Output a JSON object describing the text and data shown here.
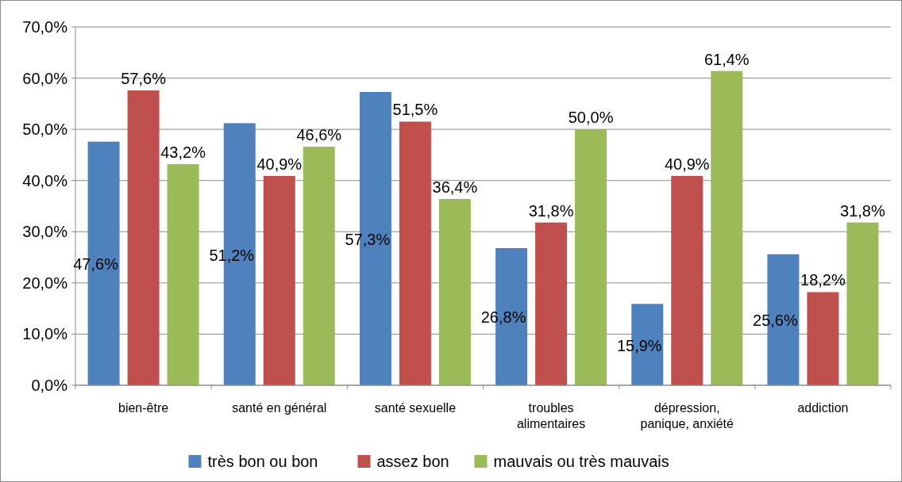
{
  "chart_data": {
    "type": "bar",
    "categories": [
      "bien-être",
      "santé en général",
      "santé sexuelle",
      "troubles alimentaires",
      "dépression, panique, anxiété",
      "addiction"
    ],
    "series": [
      {
        "name": "très bon ou bon",
        "color": "#4f81bd",
        "values": [
          47.6,
          51.2,
          57.3,
          26.8,
          15.9,
          25.6
        ],
        "value_labels": [
          "47,6%",
          "51,2%",
          "57,3%",
          "26,8%",
          "15,9%",
          "25,6%"
        ]
      },
      {
        "name": "assez bon",
        "color": "#c0504d",
        "values": [
          57.6,
          40.9,
          51.5,
          31.8,
          40.9,
          18.2
        ],
        "value_labels": [
          "57,6%",
          "40,9%",
          "51,5%",
          "31,8%",
          "40,9%",
          "18,2%"
        ]
      },
      {
        "name": "mauvais ou très mauvais",
        "color": "#9bbb59",
        "values": [
          43.2,
          46.6,
          36.4,
          50.0,
          61.4,
          31.8
        ],
        "value_labels": [
          "43,2%",
          "46,6%",
          "36,4%",
          "50,0%",
          "61,4%",
          "31,8%"
        ]
      }
    ],
    "ylim": [
      0,
      70
    ],
    "yticks": [
      {
        "value": 0,
        "label": "0,0%"
      },
      {
        "value": 10,
        "label": "10,0%"
      },
      {
        "value": 20,
        "label": "20,0%"
      },
      {
        "value": 30,
        "label": "30,0%"
      },
      {
        "value": 40,
        "label": "40,0%"
      },
      {
        "value": 50,
        "label": "50,0%"
      },
      {
        "value": 60,
        "label": "60,0%"
      },
      {
        "value": 70,
        "label": "70,0%"
      }
    ],
    "grid": "y",
    "legend": "bottom"
  }
}
